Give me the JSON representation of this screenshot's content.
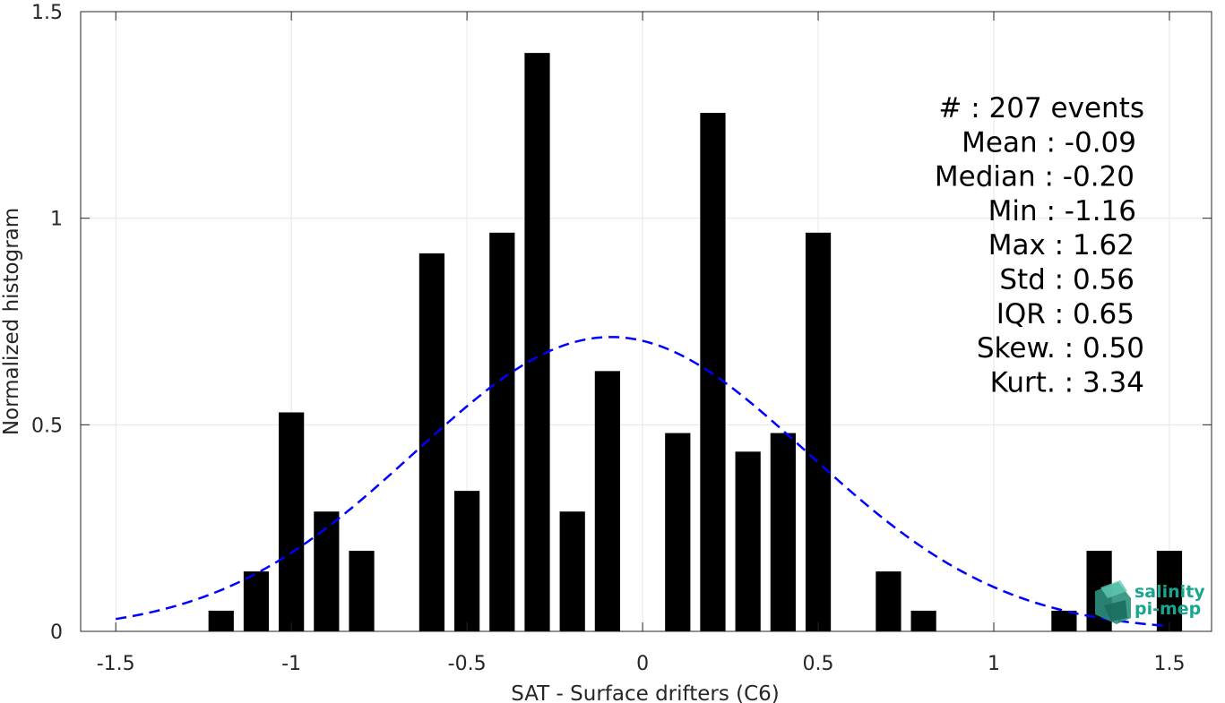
{
  "chart_data": {
    "type": "bar",
    "xlabel": "SAT - Surface drifters (C6)",
    "ylabel": "Normalized histogram",
    "xlim": [
      -1.6,
      1.62
    ],
    "ylim": [
      0,
      1.5
    ],
    "xticks": [
      -1.5,
      -1,
      -0.5,
      0,
      0.5,
      1,
      1.5
    ],
    "xtick_labels": [
      "-1.5",
      "-1",
      "-0.5",
      "0",
      "0.5",
      "1",
      "1.5"
    ],
    "yticks": [
      0,
      0.5,
      1,
      1.5
    ],
    "ytick_labels": [
      "0",
      "0.5",
      "1",
      "1.5"
    ],
    "grid": true,
    "bar_color": "#000000",
    "bin_width": 0.1,
    "bars": [
      {
        "x": -1.2,
        "y": 0.05
      },
      {
        "x": -1.1,
        "y": 0.145
      },
      {
        "x": -1.0,
        "y": 0.53
      },
      {
        "x": -0.9,
        "y": 0.29
      },
      {
        "x": -0.8,
        "y": 0.195
      },
      {
        "x": -0.6,
        "y": 0.915
      },
      {
        "x": -0.5,
        "y": 0.34
      },
      {
        "x": -0.4,
        "y": 0.965
      },
      {
        "x": -0.3,
        "y": 1.4
      },
      {
        "x": -0.2,
        "y": 0.29
      },
      {
        "x": -0.1,
        "y": 0.63
      },
      {
        "x": 0.1,
        "y": 0.48
      },
      {
        "x": 0.2,
        "y": 1.255
      },
      {
        "x": 0.3,
        "y": 0.435
      },
      {
        "x": 0.4,
        "y": 0.48
      },
      {
        "x": 0.5,
        "y": 0.965
      },
      {
        "x": 0.7,
        "y": 0.145
      },
      {
        "x": 0.8,
        "y": 0.05
      },
      {
        "x": 1.2,
        "y": 0.05
      },
      {
        "x": 1.3,
        "y": 0.195
      },
      {
        "x": 1.5,
        "y": 0.195
      }
    ],
    "fit_curve": {
      "type": "gaussian",
      "mean": -0.09,
      "std": 0.56,
      "x_range": [
        -1.5,
        1.5
      ],
      "color": "#0000ff",
      "style": "dashed"
    },
    "annotations": [
      "#  : 207 events",
      "Mean : -0.09",
      "Median : -0.20",
      "Min : -1.16",
      "Max : 1.62",
      "Std : 0.56",
      "IQR : 0.65",
      "Skew. : 0.50",
      "Kurt. : 3.34"
    ]
  },
  "logo": {
    "line1": "salinity",
    "line2": "pi-mep",
    "color": "#1aa68e"
  }
}
